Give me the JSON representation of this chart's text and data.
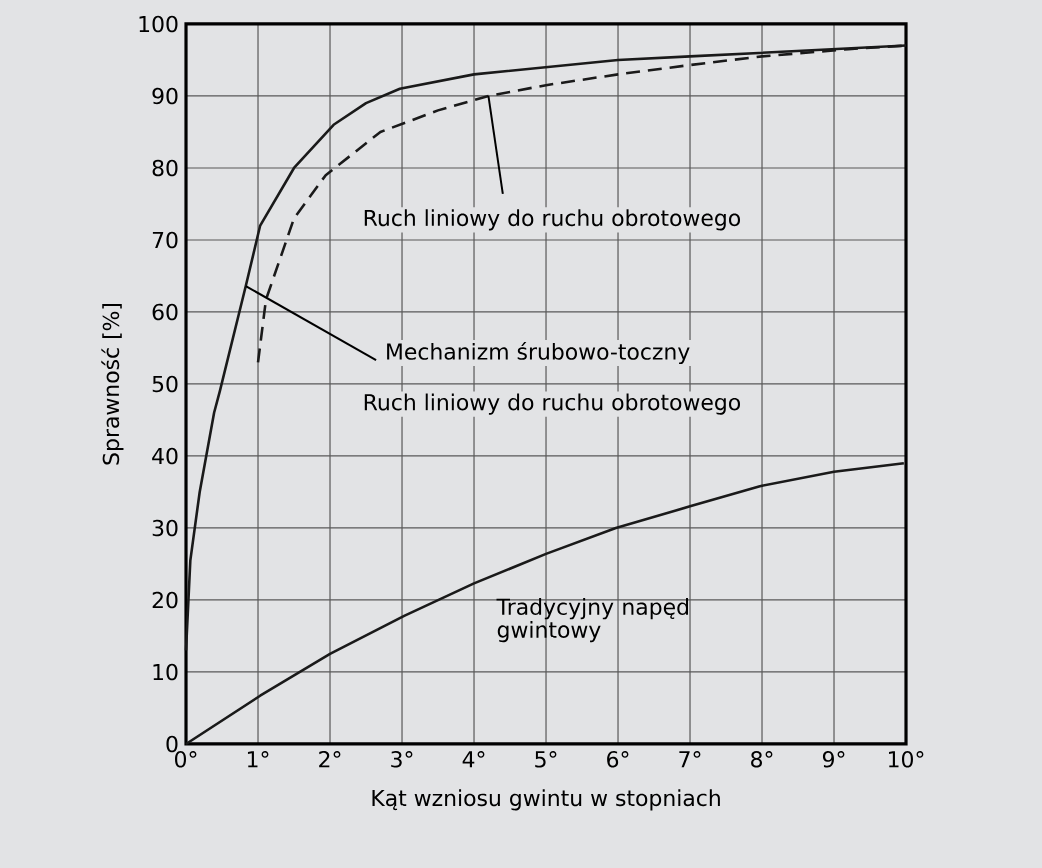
{
  "chart_data": {
    "type": "line",
    "xlabel": "Kąt wzniosu gwintu w stopniach",
    "ylabel": "Sprawność [%]",
    "xlim": [
      0,
      10
    ],
    "ylim": [
      0,
      100
    ],
    "xticks": [
      {
        "value": 0,
        "label": "0°"
      },
      {
        "value": 1,
        "label": "1°"
      },
      {
        "value": 2,
        "label": "2°"
      },
      {
        "value": 3,
        "label": "3°"
      },
      {
        "value": 4,
        "label": "4°"
      },
      {
        "value": 5,
        "label": "5°"
      },
      {
        "value": 6,
        "label": "6°"
      },
      {
        "value": 7,
        "label": "7°"
      },
      {
        "value": 8,
        "label": "8°"
      },
      {
        "value": 9,
        "label": "9°"
      },
      {
        "value": 10,
        "label": "10°"
      }
    ],
    "yticks": [
      0,
      10,
      20,
      30,
      40,
      50,
      60,
      70,
      80,
      90,
      100
    ],
    "grid": true,
    "legend": false,
    "marker": "none",
    "series": [
      {
        "color": "#1a1a1a",
        "line_style": "solid",
        "x": [
          0,
          0.06,
          0.19,
          0.39,
          0.47,
          0.83,
          1.03,
          1.5,
          2.05,
          2.5,
          2.97,
          4,
          5,
          6,
          7,
          8,
          9,
          10
        ],
        "values": [
          13,
          25.5,
          35,
          46,
          49,
          63.6,
          72,
          80,
          86,
          89,
          91,
          93,
          94,
          95,
          95.5,
          96,
          96.5,
          97
        ]
      },
      {
        "color": "#1a1a1a",
        "line_style": "dashed",
        "x": [
          1.0,
          1.11,
          1.5,
          1.94,
          2.7,
          3.5,
          4.2,
          5,
          6,
          7,
          8,
          9.2,
          10
        ],
        "values": [
          53,
          61.7,
          73,
          79,
          85,
          88,
          90,
          91.5,
          93,
          94.3,
          95.5,
          96.5,
          97
        ]
      },
      {
        "name": "Tradycyjny napęd\ngwintowy",
        "color": "#1a1a1a",
        "line_style": "solid",
        "x": [
          0,
          1.03,
          2,
          3.03,
          4,
          5,
          5.97,
          7,
          7.97,
          9,
          9.97
        ],
        "values": [
          0,
          6.7,
          12.5,
          17.8,
          22.3,
          26.4,
          30,
          33,
          35.8,
          37.8,
          39
        ]
      }
    ],
    "annotations": [
      {
        "text": "Ruch liniowy do ruchu obrotowego",
        "x": 4.2,
        "y": 90
      },
      {
        "text": "Mechanizm śrubowo-toczny",
        "x": 0.83,
        "y": 63.6
      },
      "Ruch liniowy do ruchu obrotowego"
    ]
  }
}
